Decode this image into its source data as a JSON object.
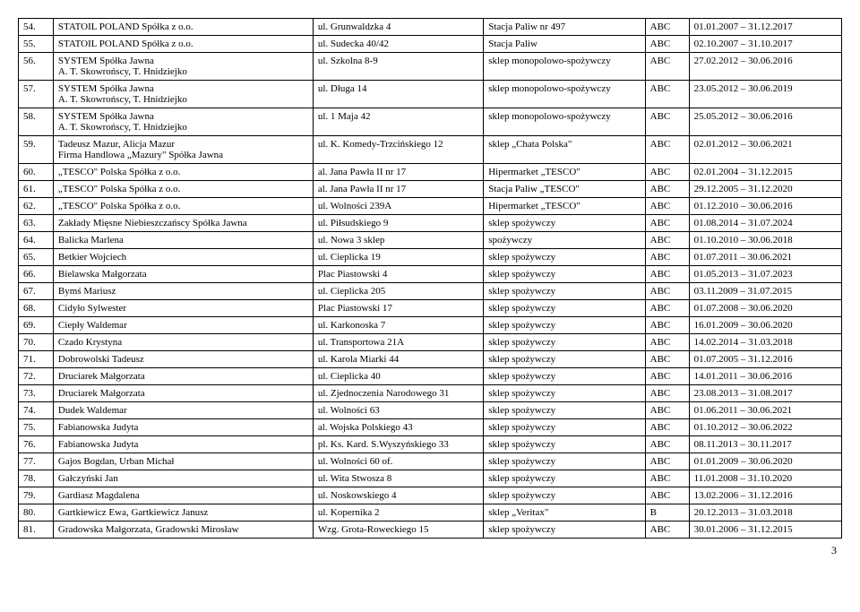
{
  "page_number": "3",
  "rows": [
    {
      "n": "54.",
      "name": "STATOIL POLAND Spółka z o.o.",
      "addr": "ul. Grunwaldzka 4",
      "desc": "Stacja Paliw nr 497",
      "abc": "ABC",
      "date": "01.01.2007 – 31.12.2017"
    },
    {
      "n": "55.",
      "name": "STATOIL POLAND Spółka z o.o.",
      "addr": "ul. Sudecka 40/42",
      "desc": "Stacja Paliw",
      "abc": "ABC",
      "date": "02.10.2007 – 31.10.2017"
    },
    {
      "n": "56.",
      "name": "SYSTEM Spółka Jawna\nA. T. Skowrońscy, T. Hnidziejko",
      "addr": "ul. Szkolna 8-9",
      "desc": "sklep monopolowo-spożywczy",
      "abc": "ABC",
      "date": "27.02.2012 – 30.06.2016"
    },
    {
      "n": "57.",
      "name": "SYSTEM Spółka Jawna\nA. T. Skowrońscy, T. Hnidziejko",
      "addr": "ul. Długa 14",
      "desc": "sklep monopolowo-spożywczy",
      "abc": "ABC",
      "date": "23.05.2012 – 30.06.2019"
    },
    {
      "n": "58.",
      "name": "SYSTEM Spółka Jawna\nA. T. Skowrońscy, T. Hnidziejko",
      "addr": "ul. 1 Maja 42",
      "desc": "sklep monopolowo-spożywczy",
      "abc": "ABC",
      "date": "25.05.2012 – 30.06.2016"
    },
    {
      "n": "59.",
      "name": "Tadeusz Mazur, Alicja Mazur\nFirma Handlowa „Mazury\" Spółka Jawna",
      "addr": "ul. K. Komedy-Trzcińskiego 12",
      "desc": "sklep „Chata Polska\"",
      "abc": "ABC",
      "date": "02.01.2012 – 30.06.2021"
    },
    {
      "n": "60.",
      "name": "„TESCO\" Polska Spółka z o.o.",
      "addr": "al. Jana Pawła II nr 17",
      "desc": "Hipermarket „TESCO\"",
      "abc": "ABC",
      "date": "02.01.2004 – 31.12.2015"
    },
    {
      "n": "61.",
      "name": "„TESCO\" Polska Spółka z o.o.",
      "addr": "al. Jana Pawła II nr 17",
      "desc": "Stacja Paliw „TESCO\"",
      "abc": "ABC",
      "date": "29.12.2005 – 31.12.2020"
    },
    {
      "n": "62.",
      "name": "„TESCO\" Polska Spółka z o.o.",
      "addr": "ul. Wolności 239A",
      "desc": "Hipermarket „TESCO\"",
      "abc": "ABC",
      "date": "01.12.2010 – 30.06.2016"
    },
    {
      "n": "63.",
      "name": "Zakłady Mięsne Niebieszczańscy Spółka Jawna",
      "addr": "ul. Piłsudskiego 9",
      "desc": "sklep spożywczy",
      "abc": "ABC",
      "date": "01.08.2014 – 31.07.2024"
    },
    {
      "n": "64.",
      "name": "Balicka Marlena",
      "addr": "ul. Nowa 3  sklep",
      "desc": "spożywczy",
      "abc": "ABC",
      "date": "01.10.2010 – 30.06.2018"
    },
    {
      "n": "65.",
      "name": "Betkier Wojciech",
      "addr": "ul. Cieplicka 19",
      "desc": "sklep spożywczy",
      "abc": "ABC",
      "date": "01.07.2011 – 30.06.2021"
    },
    {
      "n": "66.",
      "name": "Bielawska Małgorzata",
      "addr": "Plac Piastowski 4",
      "desc": "sklep spożywczy",
      "abc": "ABC",
      "date": "01.05.2013 – 31.07.2023"
    },
    {
      "n": "67.",
      "name": "Bymś Mariusz",
      "addr": "ul. Cieplicka 205",
      "desc": "sklep spożywczy",
      "abc": "ABC",
      "date": "03.11.2009 – 31.07.2015"
    },
    {
      "n": "68.",
      "name": "Cidyło Sylwester",
      "addr": "Plac Piastowski 17",
      "desc": "sklep spożywczy",
      "abc": "ABC",
      "date": "01.07.2008 – 30.06.2020"
    },
    {
      "n": "69.",
      "name": "Ciepły Waldemar",
      "addr": "ul. Karkonoska 7",
      "desc": "sklep spożywczy",
      "abc": "ABC",
      "date": "16.01.2009 – 30.06.2020"
    },
    {
      "n": "70.",
      "name": "Czado Krystyna",
      "addr": "ul. Transportowa 21A",
      "desc": "sklep spożywczy",
      "abc": "ABC",
      "date": "14.02.2014 – 31.03.2018"
    },
    {
      "n": "71.",
      "name": "Dobrowolski Tadeusz",
      "addr": "ul. Karola Miarki 44",
      "desc": "sklep spożywczy",
      "abc": "ABC",
      "date": "01.07.2005 – 31.12.2016"
    },
    {
      "n": "72.",
      "name": "Druciarek Małgorzata",
      "addr": "ul. Cieplicka 40",
      "desc": "sklep spożywczy",
      "abc": "ABC",
      "date": "14.01.2011 – 30.06.2016"
    },
    {
      "n": "73.",
      "name": "Druciarek Małgorzata",
      "addr": "ul. Zjednoczenia Narodowego 31",
      "desc": "sklep spożywczy",
      "abc": "ABC",
      "date": "23.08.2013 – 31.08.2017"
    },
    {
      "n": "74.",
      "name": "Dudek Waldemar",
      "addr": "ul. Wolności 63",
      "desc": "sklep spożywczy",
      "abc": "ABC",
      "date": "01.06.2011 – 30.06.2021"
    },
    {
      "n": "75.",
      "name": "Fabianowska Judyta",
      "addr": "al. Wojska Polskiego 43",
      "desc": "sklep spożywczy",
      "abc": "ABC",
      "date": "01.10.2012 – 30.06.2022"
    },
    {
      "n": "76.",
      "name": "Fabianowska Judyta",
      "addr": "pl. Ks. Kard. S.Wyszyńskiego 33",
      "desc": "sklep spożywczy",
      "abc": "ABC",
      "date": "08.11.2013 – 30.11.2017"
    },
    {
      "n": "77.",
      "name": "Gajos Bogdan, Urban Michał",
      "addr": "ul. Wolności 60 of.",
      "desc": "sklep spożywczy",
      "abc": "ABC",
      "date": "01.01.2009 – 30.06.2020"
    },
    {
      "n": "78.",
      "name": "Gałczyński Jan",
      "addr": "ul. Wita Stwosza 8",
      "desc": "sklep spożywczy",
      "abc": "ABC",
      "date": "11.01.2008 – 31.10.2020"
    },
    {
      "n": "79.",
      "name": "Gardiasz Magdalena",
      "addr": "ul. Noskowskiego 4",
      "desc": "sklep spożywczy",
      "abc": "ABC",
      "date": "13.02.2006 – 31.12.2016"
    },
    {
      "n": "80.",
      "name": "Gartkiewicz Ewa, Gartkiewicz Janusz",
      "addr": "ul. Kopernika 2",
      "desc": "sklep „Veritax\"",
      "abc": "B",
      "date": "20.12.2013 – 31.03.2018"
    },
    {
      "n": "81.",
      "name": "Gradowska Małgorzata, Gradowski Mirosław",
      "addr": "Wzg. Grota-Roweckiego 15",
      "desc": "sklep spożywczy",
      "abc": "ABC",
      "date": "30.01.2006 – 31.12.2015"
    }
  ]
}
